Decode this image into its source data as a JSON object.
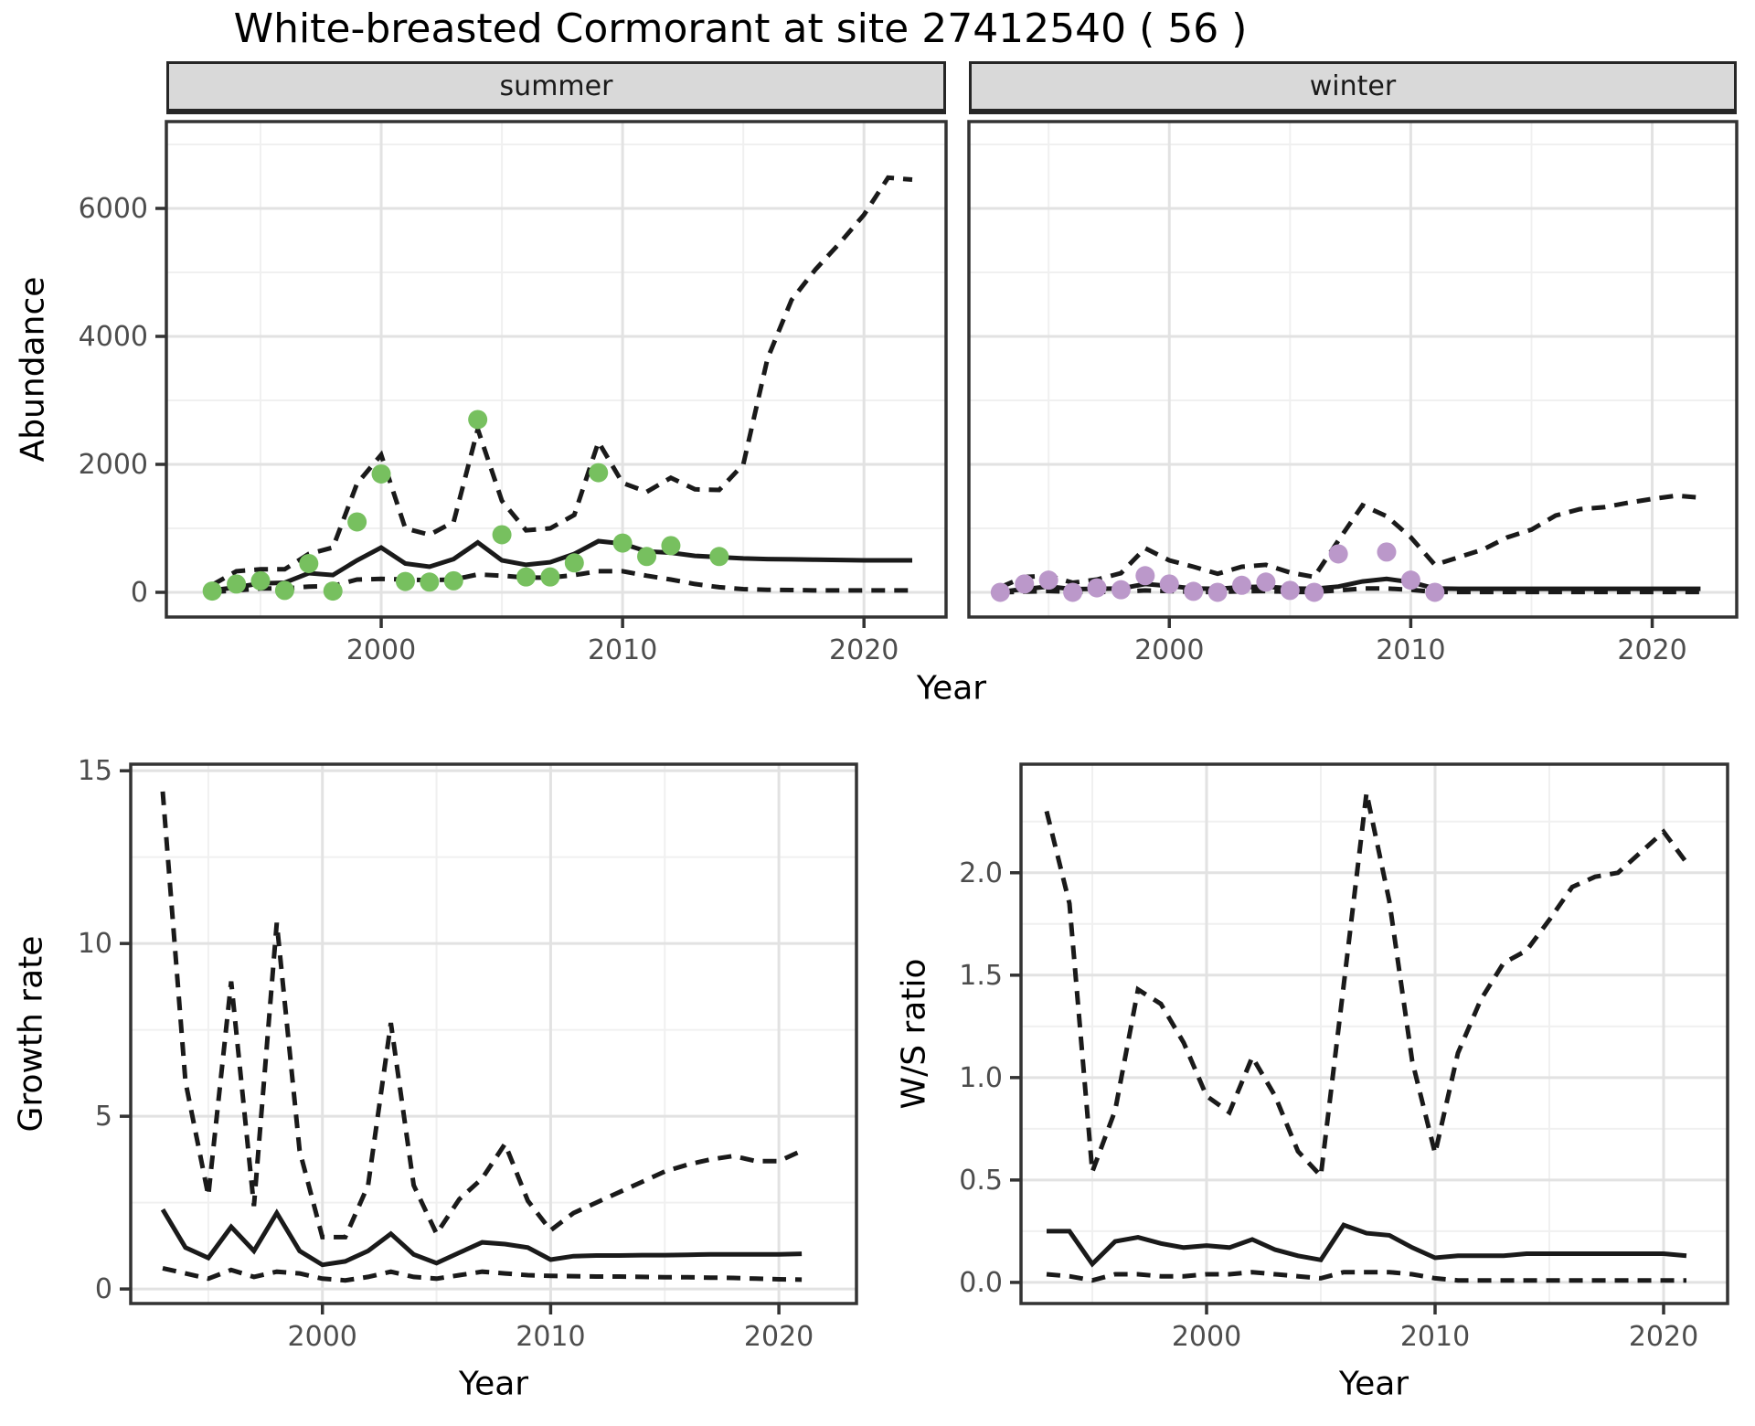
{
  "title": "White-breasted Cormorant at site 27412540 ( 56 )",
  "colors": {
    "summer_points": "#77c05f",
    "winter_points": "#bb98ca",
    "line": "#1a1a1a",
    "panel_border": "#333333",
    "strip_fill": "#d9d9d9",
    "grid_major": "#e2e2e2",
    "grid_minor": "#f0f0f0",
    "tick_label": "#4d4d4d"
  },
  "chart_data": [
    {
      "id": "abundance-summer",
      "type": "line",
      "facet_label": "summer",
      "xlabel": "Year",
      "ylabel": "Abundance",
      "legend": "none",
      "grid": "on",
      "xlim": [
        1991.1,
        2023.4
      ],
      "ylim": [
        -386,
        7357
      ],
      "x_ticks": {
        "values": [
          2000,
          2010,
          2020
        ],
        "labels": [
          "2000",
          "2010",
          "2020"
        ],
        "minor": [
          1995,
          2005,
          2015
        ]
      },
      "y_ticks": {
        "values": [
          0,
          2000,
          4000,
          6000
        ],
        "labels": [
          "0",
          "2000",
          "4000",
          "6000"
        ],
        "minor": [
          1000,
          3000,
          5000,
          7000
        ],
        "show_labels": true
      },
      "years": [
        1993,
        1994,
        1995,
        1996,
        1997,
        1998,
        1999,
        2000,
        2001,
        2002,
        2003,
        2004,
        2005,
        2006,
        2007,
        2008,
        2009,
        2010,
        2011,
        2012,
        2013,
        2014,
        2015,
        2016,
        2017,
        2018,
        2019,
        2020,
        2021,
        2022
      ],
      "median": [
        30,
        80,
        140,
        150,
        300,
        270,
        500,
        700,
        450,
        400,
        520,
        780,
        500,
        430,
        470,
        600,
        800,
        760,
        640,
        620,
        570,
        550,
        530,
        520,
        515,
        510,
        505,
        500,
        500,
        500
      ],
      "upper95": [
        115,
        330,
        360,
        360,
        600,
        700,
        1700,
        2150,
        1000,
        900,
        1100,
        2550,
        1430,
        970,
        1000,
        1210,
        2350,
        1710,
        1570,
        1790,
        1610,
        1600,
        2000,
        3650,
        4570,
        5050,
        5460,
        5900,
        6480,
        6450
      ],
      "lower95": [
        5,
        30,
        60,
        60,
        90,
        100,
        200,
        210,
        200,
        190,
        200,
        280,
        260,
        230,
        230,
        270,
        330,
        330,
        260,
        200,
        130,
        80,
        50,
        40,
        35,
        30,
        30,
        30,
        30,
        30
      ],
      "observed": {
        "years": [
          1993,
          1994,
          1995,
          1996,
          1997,
          1998,
          1999,
          2000,
          2001,
          2002,
          2003,
          2004,
          2005,
          2006,
          2007,
          2008,
          2009,
          2010,
          2011,
          2012,
          2014
        ],
        "values": [
          20,
          130,
          180,
          30,
          450,
          20,
          1100,
          1850,
          170,
          160,
          180,
          2700,
          900,
          240,
          240,
          460,
          1870,
          770,
          560,
          730,
          560
        ]
      }
    },
    {
      "id": "abundance-winter",
      "type": "line",
      "facet_label": "winter",
      "xlabel": "Year",
      "ylabel": "Abundance",
      "legend": "none",
      "grid": "on",
      "xlim": [
        1991.7,
        2023.5
      ],
      "ylim": [
        -386,
        7357
      ],
      "x_ticks": {
        "values": [
          2000,
          2010,
          2020
        ],
        "labels": [
          "2000",
          "2010",
          "2020"
        ],
        "minor": [
          1995,
          2005,
          2015
        ]
      },
      "y_ticks": {
        "values": [
          0,
          2000,
          4000,
          6000
        ],
        "labels": [
          "0",
          "2000",
          "4000",
          "6000"
        ],
        "minor": [
          1000,
          3000,
          5000,
          7000
        ],
        "show_labels": false
      },
      "years": [
        1993,
        1994,
        1995,
        1996,
        1997,
        1998,
        1999,
        2000,
        2001,
        2002,
        2003,
        2004,
        2005,
        2006,
        2007,
        2008,
        2009,
        2010,
        2011,
        2012,
        2013,
        2014,
        2015,
        2016,
        2017,
        2018,
        2019,
        2020,
        2021,
        2022
      ],
      "median": [
        10,
        50,
        90,
        50,
        55,
        60,
        130,
        100,
        60,
        55,
        80,
        90,
        60,
        55,
        90,
        170,
        210,
        160,
        60,
        55,
        55,
        55,
        55,
        55,
        55,
        55,
        55,
        55,
        55,
        55
      ],
      "upper95": [
        80,
        240,
        260,
        150,
        200,
        300,
        690,
        500,
        400,
        290,
        400,
        430,
        310,
        240,
        810,
        1360,
        1190,
        860,
        430,
        550,
        670,
        860,
        980,
        1200,
        1300,
        1330,
        1400,
        1460,
        1510,
        1480
      ],
      "lower95": [
        0,
        10,
        20,
        5,
        5,
        10,
        30,
        20,
        5,
        5,
        15,
        20,
        5,
        5,
        30,
        60,
        60,
        40,
        5,
        5,
        5,
        5,
        5,
        5,
        5,
        5,
        5,
        5,
        5,
        5
      ],
      "observed": {
        "years": [
          1993,
          1994,
          1995,
          1996,
          1997,
          1998,
          1999,
          2000,
          2001,
          2002,
          2003,
          2004,
          2005,
          2006,
          2007,
          2009,
          2010,
          2011
        ],
        "values": [
          0,
          130,
          190,
          0,
          70,
          40,
          260,
          130,
          15,
          0,
          110,
          160,
          30,
          0,
          600,
          630,
          190,
          0
        ]
      }
    },
    {
      "id": "growth-rate",
      "type": "line",
      "facet_label": "",
      "xlabel": "Year",
      "ylabel": "Growth rate",
      "legend": "none",
      "grid": "on",
      "xlim": [
        1991.6,
        2023.4
      ],
      "ylim": [
        -0.42,
        15.19
      ],
      "x_ticks": {
        "values": [
          2000,
          2010,
          2020
        ],
        "labels": [
          "2000",
          "2010",
          "2020"
        ],
        "minor": [
          1995,
          2005,
          2015
        ]
      },
      "y_ticks": {
        "values": [
          0,
          5,
          10,
          15
        ],
        "labels": [
          "0",
          "5",
          "10",
          "15"
        ],
        "minor": [
          2.5,
          7.5,
          12.5
        ],
        "show_labels": true
      },
      "years": [
        1993,
        1994,
        1995,
        1996,
        1997,
        1998,
        1999,
        2000,
        2001,
        2002,
        2003,
        2004,
        2005,
        2006,
        2007,
        2008,
        2009,
        2010,
        2011,
        2012,
        2013,
        2014,
        2015,
        2016,
        2017,
        2018,
        2019,
        2020,
        2021
      ],
      "median": [
        2.3,
        1.2,
        0.9,
        1.8,
        1.1,
        2.2,
        1.1,
        0.7,
        0.8,
        1.1,
        1.6,
        1.0,
        0.75,
        1.05,
        1.35,
        1.3,
        1.2,
        0.85,
        0.95,
        0.97,
        0.97,
        0.98,
        0.98,
        0.99,
        1.0,
        1.0,
        1.0,
        1.0,
        1.02
      ],
      "upper95": [
        14.4,
        6.0,
        2.7,
        8.9,
        2.4,
        10.6,
        4.0,
        1.5,
        1.5,
        3.0,
        7.7,
        3.0,
        1.6,
        2.6,
        3.2,
        4.2,
        2.55,
        1.7,
        2.2,
        2.5,
        2.8,
        3.1,
        3.4,
        3.6,
        3.75,
        3.85,
        3.7,
        3.7,
        4.0
      ],
      "lower95": [
        0.6,
        0.45,
        0.3,
        0.55,
        0.35,
        0.5,
        0.45,
        0.3,
        0.25,
        0.35,
        0.5,
        0.35,
        0.3,
        0.4,
        0.5,
        0.45,
        0.4,
        0.38,
        0.37,
        0.36,
        0.36,
        0.35,
        0.34,
        0.34,
        0.33,
        0.32,
        0.3,
        0.28,
        0.27
      ],
      "observed": {
        "years": [],
        "values": []
      }
    },
    {
      "id": "ws-ratio",
      "type": "line",
      "facet_label": "",
      "xlabel": "Year",
      "ylabel": "W/S ratio",
      "legend": "none",
      "grid": "on",
      "xlim": [
        1991.88,
        2022.8
      ],
      "ylim": [
        -0.103,
        2.53
      ],
      "x_ticks": {
        "values": [
          2000,
          2010,
          2020
        ],
        "labels": [
          "2000",
          "2010",
          "2020"
        ],
        "minor": [
          1995,
          2005,
          2015
        ]
      },
      "y_ticks": {
        "values": [
          0.0,
          0.5,
          1.0,
          1.5,
          2.0
        ],
        "labels": [
          "0.0",
          "0.5",
          "1.0",
          "1.5",
          "2.0"
        ],
        "minor": [
          0.25,
          0.75,
          1.25,
          1.75,
          2.25
        ],
        "show_labels": true
      },
      "years": [
        1993,
        1994,
        1995,
        1996,
        1997,
        1998,
        1999,
        2000,
        2001,
        2002,
        2003,
        2004,
        2005,
        2006,
        2007,
        2008,
        2009,
        2010,
        2011,
        2012,
        2013,
        2014,
        2015,
        2016,
        2017,
        2018,
        2019,
        2020,
        2021
      ],
      "median": [
        0.25,
        0.25,
        0.09,
        0.2,
        0.22,
        0.19,
        0.17,
        0.18,
        0.17,
        0.21,
        0.16,
        0.13,
        0.11,
        0.28,
        0.24,
        0.23,
        0.17,
        0.12,
        0.13,
        0.13,
        0.13,
        0.14,
        0.14,
        0.14,
        0.14,
        0.14,
        0.14,
        0.14,
        0.13
      ],
      "upper95": [
        2.3,
        1.85,
        0.54,
        0.84,
        1.43,
        1.36,
        1.17,
        0.91,
        0.83,
        1.1,
        0.91,
        0.64,
        0.52,
        1.45,
        2.39,
        1.86,
        1.08,
        0.63,
        1.12,
        1.38,
        1.56,
        1.62,
        1.77,
        1.93,
        1.98,
        2.0,
        2.1,
        2.2,
        2.05
      ],
      "lower95": [
        0.04,
        0.03,
        0.01,
        0.04,
        0.04,
        0.03,
        0.03,
        0.04,
        0.04,
        0.05,
        0.04,
        0.03,
        0.02,
        0.05,
        0.05,
        0.05,
        0.04,
        0.02,
        0.01,
        0.01,
        0.01,
        0.01,
        0.01,
        0.01,
        0.01,
        0.01,
        0.01,
        0.01,
        0.01
      ],
      "observed": {
        "years": [],
        "values": []
      }
    }
  ]
}
